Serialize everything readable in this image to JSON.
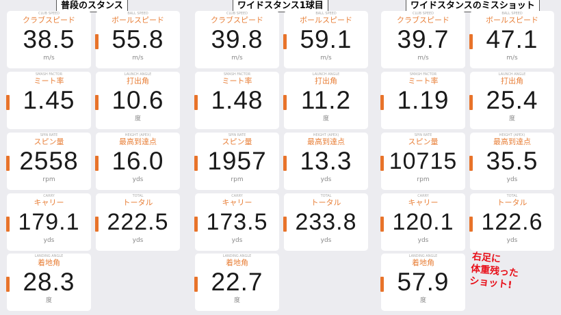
{
  "panels": [
    {
      "title": "普段のスタンス",
      "cards": [
        {
          "en": "CLUB SPEED",
          "jp": "クラブスピード",
          "value": "38.5",
          "unit": "m/s",
          "tab": false
        },
        {
          "en": "BALL SPEED",
          "jp": "ボールスピード",
          "value": "55.8",
          "unit": "m/s",
          "tab": true
        },
        {
          "en": "SMASH FACTOR",
          "jp": "ミート率",
          "value": "1.45",
          "unit": "",
          "tab": true
        },
        {
          "en": "LAUNCH ANGLE",
          "jp": "打出角",
          "value": "10.6",
          "unit": "度",
          "tab": true
        },
        {
          "en": "SPIN RATE",
          "jp": "スピン量",
          "value": "2558",
          "unit": "rpm",
          "tab": true
        },
        {
          "en": "HEIGHT (APEX)",
          "jp": "最高到達点",
          "value": "16.0",
          "unit": "yds",
          "tab": true
        },
        {
          "en": "CARRY",
          "jp": "キャリー",
          "value": "179.1",
          "unit": "yds",
          "tab": true
        },
        {
          "en": "TOTAL",
          "jp": "トータル",
          "value": "222.5",
          "unit": "yds",
          "tab": true
        },
        {
          "en": "LANDING ANGLE",
          "jp": "着地角",
          "value": "28.3",
          "unit": "度",
          "tab": true
        }
      ]
    },
    {
      "title": "ワイドスタンス1球目",
      "cards": [
        {
          "en": "CLUB SPEED",
          "jp": "クラブスピード",
          "value": "39.8",
          "unit": "m/s",
          "tab": false
        },
        {
          "en": "BALL SPEED",
          "jp": "ボールスピード",
          "value": "59.1",
          "unit": "m/s",
          "tab": true
        },
        {
          "en": "SMASH FACTOR",
          "jp": "ミート率",
          "value": "1.48",
          "unit": "",
          "tab": true
        },
        {
          "en": "LAUNCH ANGLE",
          "jp": "打出角",
          "value": "11.2",
          "unit": "度",
          "tab": true
        },
        {
          "en": "SPIN RATE",
          "jp": "スピン量",
          "value": "1957",
          "unit": "rpm",
          "tab": true
        },
        {
          "en": "HEIGHT (APEX)",
          "jp": "最高到達点",
          "value": "13.3",
          "unit": "yds",
          "tab": true
        },
        {
          "en": "CARRY",
          "jp": "キャリー",
          "value": "173.5",
          "unit": "yds",
          "tab": true
        },
        {
          "en": "TOTAL",
          "jp": "トータル",
          "value": "233.8",
          "unit": "yds",
          "tab": true
        },
        {
          "en": "LANDING ANGLE",
          "jp": "着地角",
          "value": "22.7",
          "unit": "度",
          "tab": true
        }
      ]
    },
    {
      "title": "ワイドスタンスのミスショット",
      "cards": [
        {
          "en": "CLUB SPEED",
          "jp": "クラブスピード",
          "value": "39.7",
          "unit": "m/s",
          "tab": false
        },
        {
          "en": "BALL SPEED",
          "jp": "ボールスピード",
          "value": "47.1",
          "unit": "m/s",
          "tab": true
        },
        {
          "en": "SMASH FACTOR",
          "jp": "ミート率",
          "value": "1.19",
          "unit": "",
          "tab": true
        },
        {
          "en": "LAUNCH ANGLE",
          "jp": "打出角",
          "value": "25.4",
          "unit": "度",
          "tab": true
        },
        {
          "en": "SPIN RATE",
          "jp": "スピン量",
          "value": "10715",
          "unit": "rpm",
          "tab": true
        },
        {
          "en": "HEIGHT (APEX)",
          "jp": "最高到達点",
          "value": "35.5",
          "unit": "yds",
          "tab": true
        },
        {
          "en": "CARRY",
          "jp": "キャリー",
          "value": "120.1",
          "unit": "yds",
          "tab": true
        },
        {
          "en": "TOTAL",
          "jp": "トータル",
          "value": "122.6",
          "unit": "yds",
          "tab": true
        },
        {
          "en": "LANDING ANGLE",
          "jp": "着地角",
          "value": "57.9",
          "unit": "度",
          "tab": true
        }
      ]
    }
  ],
  "annotation": "右足に\n体重残った\nショット!",
  "colors": {
    "accent": "#e8732a",
    "label": "#e8803a",
    "annotation": "#e8101a"
  }
}
